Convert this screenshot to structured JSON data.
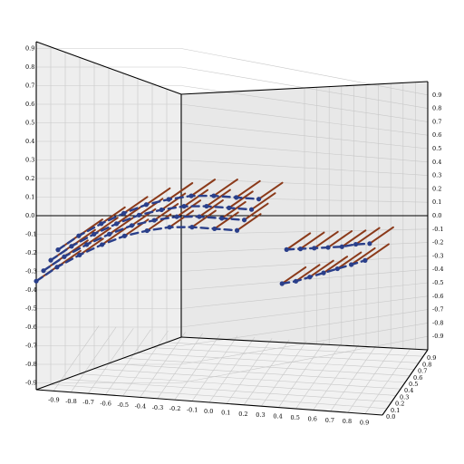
{
  "chart_data": {
    "type": "3d-quiver",
    "title": "",
    "xlabel": "",
    "ylabel": "",
    "zlabel": "",
    "grid": true,
    "x_ticks": [
      "-0.9",
      "-0.8",
      "-0.7",
      "-0.6",
      "-0.5",
      "-0.4",
      "-0.3",
      "-0.2",
      "-0.1",
      "0.0",
      "0.1",
      "0.2",
      "0.3",
      "0.4",
      "0.5",
      "0.6",
      "0.7",
      "0.8",
      "0.9"
    ],
    "y_ticks": [
      "0.9",
      "0.8",
      "0.7",
      "0.6",
      "0.5",
      "0.4",
      "0.3",
      "0.2",
      "0.1",
      "0.0"
    ],
    "z_ticks": [
      "0.9",
      "0.8",
      "0.7",
      "0.6",
      "0.5",
      "0.4",
      "0.3",
      "0.2",
      "0.1",
      "0.0",
      "-0.1",
      "-0.2",
      "-0.3",
      "-0.4",
      "-0.5",
      "-0.6",
      "-0.7",
      "-0.8",
      "-0.9"
    ],
    "xlim": [
      -1,
      1
    ],
    "ylim": [
      0,
      1
    ],
    "zlim": [
      -1,
      1
    ],
    "colors": {
      "arrow": "#8b3a1a",
      "path": "#2a3f8a",
      "pane": "#eeeeee",
      "grid": "#c8c8c8"
    },
    "curves": [
      {
        "y": 0.0,
        "points": [
          [
            -1.0,
            -0.38
          ],
          [
            -0.88,
            -0.29
          ],
          [
            -0.75,
            -0.21
          ],
          [
            -0.62,
            -0.14
          ],
          [
            -0.49,
            -0.08
          ],
          [
            -0.36,
            -0.04
          ],
          [
            -0.23,
            -0.01
          ],
          [
            -0.1,
            0.0
          ],
          [
            0.03,
            0.0
          ],
          [
            0.16,
            0.0
          ]
        ]
      },
      {
        "y": 0.16,
        "points": [
          [
            -1.0,
            -0.38
          ],
          [
            -0.88,
            -0.29
          ],
          [
            -0.75,
            -0.21
          ],
          [
            -0.62,
            -0.14
          ],
          [
            -0.49,
            -0.08
          ],
          [
            -0.36,
            -0.04
          ],
          [
            -0.23,
            -0.01
          ],
          [
            -0.1,
            0.0
          ],
          [
            0.03,
            0.0
          ],
          [
            0.16,
            0.0
          ]
        ]
      },
      {
        "y": 0.32,
        "points": [
          [
            -1.0,
            -0.38
          ],
          [
            -0.88,
            -0.29
          ],
          [
            -0.75,
            -0.21
          ],
          [
            -0.62,
            -0.14
          ],
          [
            -0.49,
            -0.08
          ],
          [
            -0.36,
            -0.04
          ],
          [
            -0.23,
            -0.01
          ],
          [
            -0.1,
            0.0
          ],
          [
            0.03,
            0.0
          ],
          [
            0.16,
            0.0
          ]
        ]
      },
      {
        "y": 0.48,
        "points": [
          [
            -1.0,
            -0.38
          ],
          [
            -0.88,
            -0.29
          ],
          [
            -0.75,
            -0.21
          ],
          [
            -0.62,
            -0.14
          ],
          [
            -0.49,
            -0.08
          ],
          [
            -0.36,
            -0.04
          ],
          [
            -0.23,
            -0.01
          ],
          [
            -0.1,
            0.0
          ],
          [
            0.03,
            0.0
          ],
          [
            0.16,
            0.0
          ]
        ]
      },
      {
        "y": 0.0,
        "points": [
          [
            0.42,
            -0.29
          ],
          [
            0.5,
            -0.27
          ],
          [
            0.58,
            -0.24
          ],
          [
            0.66,
            -0.21
          ],
          [
            0.74,
            -0.18
          ],
          [
            0.82,
            -0.15
          ],
          [
            0.9,
            -0.12
          ]
        ]
      },
      {
        "y": 0.1,
        "points": [
          [
            0.42,
            -0.13
          ],
          [
            0.5,
            -0.12
          ],
          [
            0.58,
            -0.11
          ],
          [
            0.66,
            -0.1
          ],
          [
            0.74,
            -0.09
          ],
          [
            0.82,
            -0.07
          ],
          [
            0.9,
            -0.06
          ]
        ]
      }
    ]
  }
}
